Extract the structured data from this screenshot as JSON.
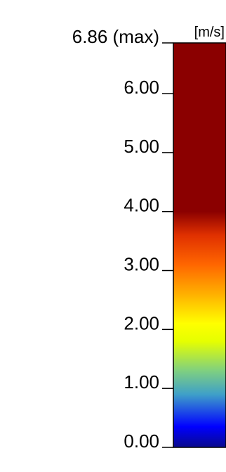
{
  "chart_data": {
    "type": "heatmap",
    "unit": "[m/s]",
    "min": 0,
    "max": 6.86,
    "ticks": [
      {
        "value": 6.86,
        "label": "6.86 (max)"
      },
      {
        "value": 6,
        "label": "6.00"
      },
      {
        "value": 5,
        "label": "5.00"
      },
      {
        "value": 4,
        "label": "4.00"
      },
      {
        "value": 3,
        "label": "3.00"
      },
      {
        "value": 2,
        "label": "2.00"
      },
      {
        "value": 1,
        "label": "1.00"
      },
      {
        "value": 0,
        "label": "0.00"
      }
    ],
    "color_stops": [
      {
        "value": 0,
        "color": "#0a0a8c"
      },
      {
        "value": 0.35,
        "color": "#0000ff"
      },
      {
        "value": 0.9,
        "color": "#3fa0c8"
      },
      {
        "value": 1.3,
        "color": "#7fd080"
      },
      {
        "value": 1.8,
        "color": "#e6ff00"
      },
      {
        "value": 2.1,
        "color": "#ffff00"
      },
      {
        "value": 2.6,
        "color": "#ffb000"
      },
      {
        "value": 3.1,
        "color": "#ff6600"
      },
      {
        "value": 3.6,
        "color": "#e03000"
      },
      {
        "value": 4.0,
        "color": "#8b0000"
      },
      {
        "value": 6.86,
        "color": "#8b0000"
      }
    ]
  }
}
